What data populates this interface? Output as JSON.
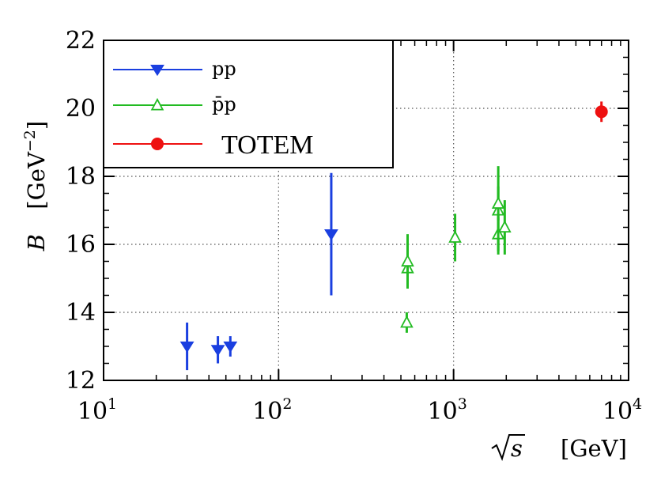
{
  "chart_data": {
    "type": "scatter",
    "title": "",
    "xlabel": "√s   [GeV]",
    "ylabel": "B   [GeV⁻²]",
    "xscale": "log",
    "xlim": [
      10,
      10000
    ],
    "ylim": [
      12,
      22
    ],
    "grid": true,
    "legend_position": "top-left",
    "x_ticks": [
      {
        "value": 10,
        "base": "10",
        "exp": "1"
      },
      {
        "value": 100,
        "base": "10",
        "exp": "2"
      },
      {
        "value": 1000,
        "base": "10",
        "exp": "3"
      },
      {
        "value": 10000,
        "base": "10",
        "exp": "4"
      }
    ],
    "y_ticks": [
      {
        "value": 12,
        "label": "12"
      },
      {
        "value": 14,
        "label": "14"
      },
      {
        "value": 16,
        "label": "16"
      },
      {
        "value": 18,
        "label": "18"
      },
      {
        "value": 20,
        "label": "20"
      },
      {
        "value": 22,
        "label": "22"
      }
    ],
    "series": [
      {
        "name": "pp",
        "color": "#1a3fe0",
        "marker": "triangle-down-filled",
        "points": [
          {
            "x": 30.0,
            "y": 13.0,
            "err": 0.7
          },
          {
            "x": 45.0,
            "y": 12.9,
            "err": 0.4
          },
          {
            "x": 53.0,
            "y": 13.0,
            "err": 0.3
          },
          {
            "x": 200.0,
            "y": 16.3,
            "err": 1.8
          }
        ]
      },
      {
        "name": "p̄p",
        "color": "#22bb22",
        "marker": "triangle-up-open",
        "points": [
          {
            "x": 540.0,
            "y": 13.7,
            "err": 0.3
          },
          {
            "x": 546.0,
            "y": 15.3,
            "err": 0.6
          },
          {
            "x": 546.0,
            "y": 15.5,
            "err": 0.8
          },
          {
            "x": 1020.0,
            "y": 16.2,
            "err": 0.7
          },
          {
            "x": 1800.0,
            "y": 16.3,
            "err": 0.5
          },
          {
            "x": 1800.0,
            "y": 17.0,
            "err": 1.3
          },
          {
            "x": 1800.0,
            "y": 17.2,
            "err": 0.5
          },
          {
            "x": 1960.0,
            "y": 16.5,
            "err": 0.8
          }
        ]
      },
      {
        "name": "TOTEM",
        "color": "#ee1111",
        "marker": "circle-filled",
        "points": [
          {
            "x": 7000.0,
            "y": 19.9,
            "err": 0.3
          }
        ]
      }
    ],
    "axis_labels": {
      "y_symbol": "B",
      "y_unit_open": "[GeV",
      "y_unit_exp": "−2",
      "y_unit_close": "]",
      "x_symbol": "s",
      "x_unit": "[GeV]"
    }
  }
}
